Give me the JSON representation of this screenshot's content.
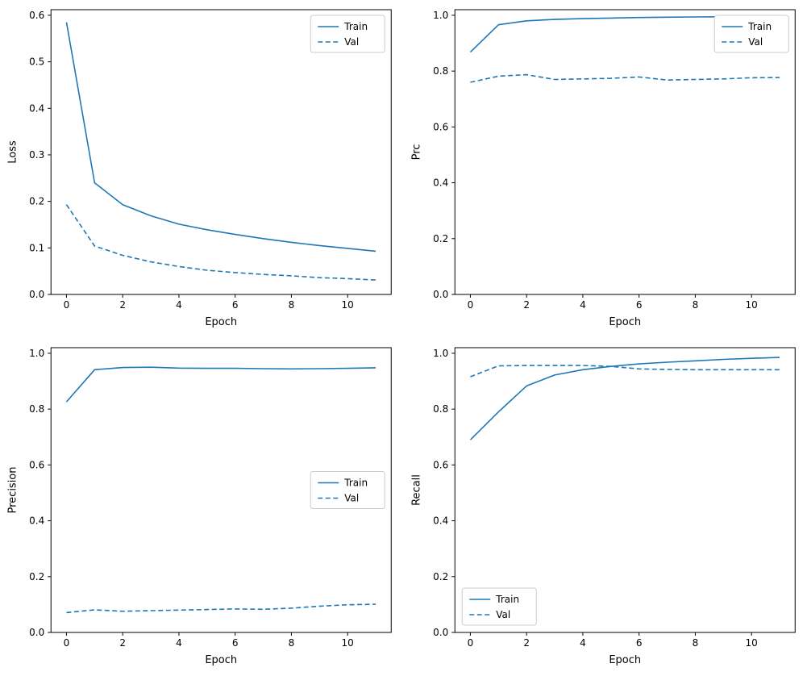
{
  "figure": {
    "background": "#ffffff",
    "line_color": "#1f77b4",
    "legend_border_color": "#cccccc",
    "axis_color": "#000000"
  },
  "chart_data": [
    {
      "type": "line",
      "title": "",
      "ylabel": "Loss",
      "xlabel": "Epoch",
      "x": [
        0,
        1,
        2,
        3,
        4,
        5,
        6,
        7,
        8,
        9,
        10,
        11
      ],
      "xticks": [
        0,
        2,
        4,
        6,
        8,
        10
      ],
      "ylim": [
        0,
        0.612
      ],
      "yticks": [
        0.0,
        0.1,
        0.2,
        0.3,
        0.4,
        0.5,
        0.6
      ],
      "grid": false,
      "legend": {
        "position": "upper-right",
        "entries": [
          "Train",
          "Val"
        ]
      },
      "series": [
        {
          "name": "Train",
          "style": "solid",
          "values": [
            0.585,
            0.24,
            0.193,
            0.169,
            0.151,
            0.139,
            0.129,
            0.12,
            0.112,
            0.105,
            0.099,
            0.093
          ]
        },
        {
          "name": "Val",
          "style": "dashed",
          "values": [
            0.193,
            0.104,
            0.084,
            0.07,
            0.06,
            0.052,
            0.047,
            0.043,
            0.04,
            0.036,
            0.034,
            0.031
          ]
        }
      ]
    },
    {
      "type": "line",
      "title": "",
      "ylabel": "Prc",
      "xlabel": "Epoch",
      "x": [
        0,
        1,
        2,
        3,
        4,
        5,
        6,
        7,
        8,
        9,
        10,
        11
      ],
      "xticks": [
        0,
        2,
        4,
        6,
        8,
        10
      ],
      "ylim": [
        0,
        1.02
      ],
      "yticks": [
        0.0,
        0.2,
        0.4,
        0.6,
        0.8,
        1.0
      ],
      "grid": false,
      "legend": {
        "position": "upper-right",
        "entries": [
          "Train",
          "Val"
        ]
      },
      "series": [
        {
          "name": "Train",
          "style": "solid",
          "values": [
            0.868,
            0.966,
            0.98,
            0.985,
            0.988,
            0.99,
            0.992,
            0.993,
            0.994,
            0.995,
            0.995,
            0.996
          ]
        },
        {
          "name": "Val",
          "style": "dashed",
          "values": [
            0.76,
            0.782,
            0.787,
            0.77,
            0.772,
            0.774,
            0.779,
            0.768,
            0.77,
            0.772,
            0.776,
            0.777
          ]
        }
      ]
    },
    {
      "type": "line",
      "title": "",
      "ylabel": "Precision",
      "xlabel": "Epoch",
      "x": [
        0,
        1,
        2,
        3,
        4,
        5,
        6,
        7,
        8,
        9,
        10,
        11
      ],
      "xticks": [
        0,
        2,
        4,
        6,
        8,
        10
      ],
      "ylim": [
        0,
        1.02
      ],
      "yticks": [
        0.0,
        0.2,
        0.4,
        0.6,
        0.8,
        1.0
      ],
      "grid": false,
      "legend": {
        "position": "center-right",
        "entries": [
          "Train",
          "Val"
        ]
      },
      "series": [
        {
          "name": "Train",
          "style": "solid",
          "values": [
            0.826,
            0.941,
            0.949,
            0.95,
            0.947,
            0.946,
            0.946,
            0.945,
            0.944,
            0.945,
            0.946,
            0.948
          ]
        },
        {
          "name": "Val",
          "style": "dashed",
          "values": [
            0.071,
            0.081,
            0.076,
            0.078,
            0.08,
            0.082,
            0.084,
            0.083,
            0.087,
            0.094,
            0.099,
            0.101
          ]
        }
      ]
    },
    {
      "type": "line",
      "title": "",
      "ylabel": "Recall",
      "xlabel": "Epoch",
      "x": [
        0,
        1,
        2,
        3,
        4,
        5,
        6,
        7,
        8,
        9,
        10,
        11
      ],
      "xticks": [
        0,
        2,
        4,
        6,
        8,
        10
      ],
      "ylim": [
        0,
        1.02
      ],
      "yticks": [
        0.0,
        0.2,
        0.4,
        0.6,
        0.8,
        1.0
      ],
      "grid": false,
      "legend": {
        "position": "lower-left",
        "entries": [
          "Train",
          "Val"
        ]
      },
      "series": [
        {
          "name": "Train",
          "style": "solid",
          "values": [
            0.69,
            0.79,
            0.883,
            0.922,
            0.941,
            0.953,
            0.962,
            0.968,
            0.973,
            0.978,
            0.982,
            0.985
          ]
        },
        {
          "name": "Val",
          "style": "dashed",
          "values": [
            0.916,
            0.955,
            0.956,
            0.956,
            0.956,
            0.953,
            0.944,
            0.942,
            0.941,
            0.941,
            0.941,
            0.941
          ]
        }
      ]
    }
  ]
}
